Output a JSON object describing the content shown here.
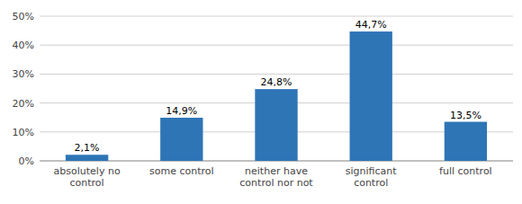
{
  "chart_data": {
    "type": "bar",
    "categories": [
      "absolutely no\ncontrol",
      "some control",
      "neither have\ncontrol nor not",
      "significant\ncontrol",
      "full control"
    ],
    "values": [
      2.1,
      14.9,
      24.8,
      44.7,
      13.5
    ],
    "value_labels": [
      "2,1%",
      "14,9%",
      "24,8%",
      "44,7%",
      "13,5%"
    ],
    "data_labels": true,
    "color": "#2e75b6",
    "ylim": [
      0,
      50
    ],
    "yticks": [
      {
        "value": 0,
        "label": "0%"
      },
      {
        "value": 10,
        "label": "10%"
      },
      {
        "value": 20,
        "label": "20%"
      },
      {
        "value": 30,
        "label": "30%"
      },
      {
        "value": 40,
        "label": "40%"
      },
      {
        "value": 50,
        "label": "50%"
      }
    ],
    "grid": true
  }
}
